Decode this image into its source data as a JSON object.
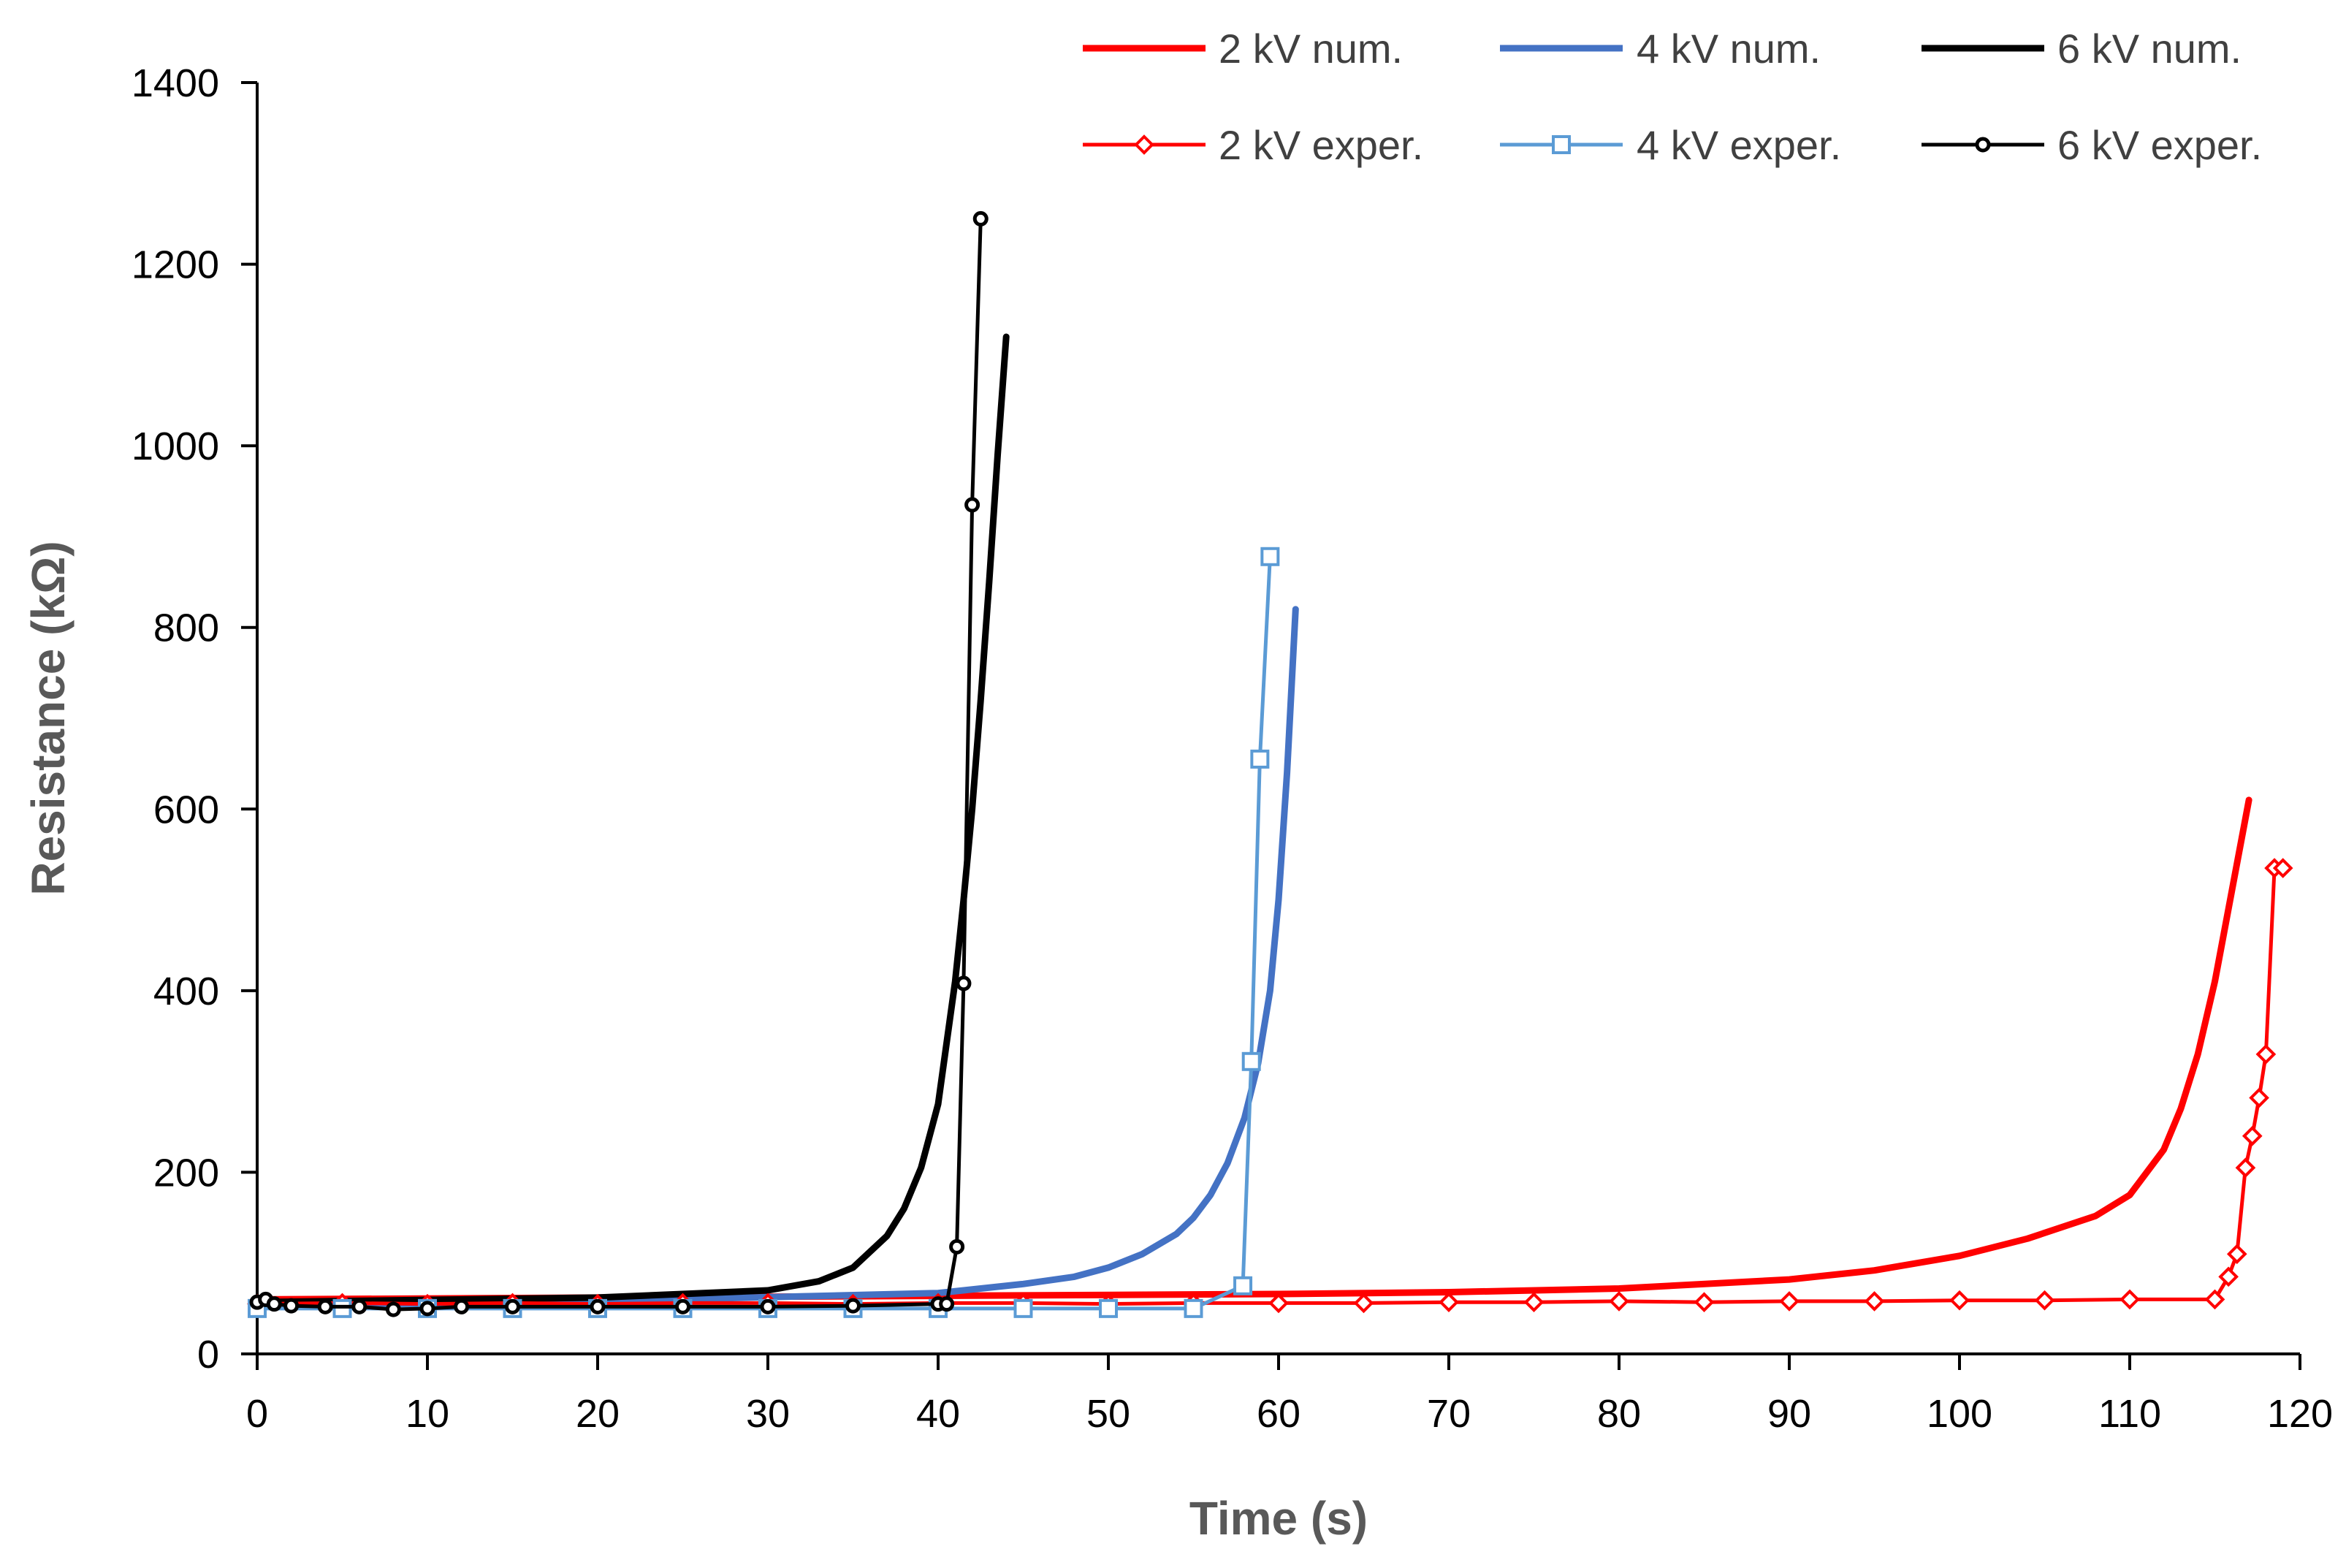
{
  "chart_data": {
    "type": "line",
    "title": "",
    "xlabel": "Time (s)",
    "ylabel": "Resistance (kΩ)",
    "xlim": [
      0,
      120
    ],
    "ylim": [
      0,
      1400
    ],
    "xticks": [
      "0",
      "10",
      "20",
      "30",
      "40",
      "50",
      "60",
      "70",
      "80",
      "90",
      "100",
      "110",
      "120"
    ],
    "yticks": [
      "0",
      "200",
      "400",
      "600",
      "800",
      "1000",
      "1200",
      "1400"
    ],
    "grid": false,
    "legend_position": "top-right",
    "series": [
      {
        "name": "2 kV num.",
        "kind": "numerical",
        "color": "#ff0000",
        "marker": "none",
        "x": [
          0,
          20,
          40,
          60,
          70,
          80,
          90,
          95,
          100,
          104,
          108,
          110,
          112,
          113,
          114,
          115,
          116,
          117
        ],
        "y": [
          60,
          62,
          64,
          66,
          68,
          72,
          82,
          92,
          108,
          127,
          152,
          175,
          225,
          270,
          330,
          410,
          510,
          610
        ]
      },
      {
        "name": "4 kV num.",
        "kind": "numerical",
        "color": "#4472c4",
        "marker": "none",
        "x": [
          0,
          20,
          40,
          45,
          48,
          50,
          52,
          54,
          55,
          56,
          57,
          58,
          58.8,
          59.5,
          60,
          60.5,
          61
        ],
        "y": [
          53,
          58,
          67,
          77,
          85,
          95,
          110,
          132,
          150,
          175,
          210,
          260,
          320,
          400,
          500,
          640,
          820
        ]
      },
      {
        "name": "6 kV num.",
        "kind": "numerical",
        "color": "#000000",
        "marker": "none",
        "x": [
          0,
          20,
          30,
          33,
          35,
          37,
          38,
          39,
          40,
          41,
          41.5,
          42,
          42.5,
          43,
          43.5,
          44
        ],
        "y": [
          57,
          62,
          70,
          80,
          95,
          130,
          160,
          205,
          275,
          410,
          500,
          600,
          720,
          850,
          990,
          1120
        ]
      },
      {
        "name": "2 kV exper.",
        "kind": "experimental",
        "color": "#ff0000",
        "marker": "diamond",
        "x": [
          0,
          5,
          10,
          15,
          20,
          25,
          30,
          35,
          40,
          45,
          50,
          55,
          60,
          65,
          70,
          75,
          80,
          85,
          90,
          95,
          100,
          105,
          110,
          115,
          115.8,
          116.3,
          116.8,
          117.2,
          117.6,
          118,
          118.5,
          119
        ],
        "y": [
          55,
          56,
          55,
          56,
          55,
          56,
          56,
          55,
          56,
          56,
          55,
          56,
          56,
          56,
          57,
          57,
          58,
          57,
          58,
          58,
          59,
          59,
          60,
          60,
          85,
          110,
          205,
          240,
          282,
          330,
          535,
          535
        ]
      },
      {
        "name": "4 kV exper.",
        "kind": "experimental",
        "color": "#5b9bd5",
        "marker": "square",
        "x": [
          0,
          5,
          10,
          15,
          20,
          25,
          30,
          35,
          40,
          45,
          50,
          55,
          57.9,
          58.4,
          58.9,
          59.5
        ],
        "y": [
          50,
          50,
          50,
          50,
          50,
          50,
          50,
          50,
          50,
          50,
          50,
          50,
          75,
          322,
          655,
          878
        ]
      },
      {
        "name": "6 kV exper.",
        "kind": "experimental",
        "color": "#000000",
        "marker": "circle",
        "x": [
          0,
          0.5,
          1,
          2,
          4,
          6,
          8,
          10,
          12,
          15,
          20,
          25,
          30,
          35,
          40,
          40.5,
          41.1,
          41.5,
          42,
          42.5
        ],
        "y": [
          57,
          60,
          55,
          53,
          52,
          52,
          49,
          50,
          52,
          52,
          52,
          52,
          52,
          53,
          55,
          55,
          118,
          408,
          935,
          1250
        ]
      }
    ]
  }
}
